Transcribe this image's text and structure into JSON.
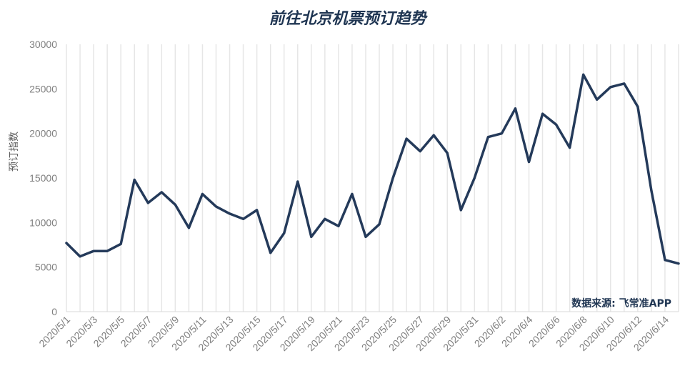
{
  "chart_data": {
    "type": "line",
    "title": "前往北京机票预订趋势",
    "ylabel": "预订指数",
    "source": "数据来源: 飞常准APP",
    "ylim": [
      0,
      30000
    ],
    "yticks": [
      0,
      5000,
      10000,
      15000,
      20000,
      25000,
      30000
    ],
    "grid": "vertical",
    "line_color": "#243a5a",
    "x_tick_labels": [
      "2020/5/1",
      "2020/5/3",
      "2020/5/5",
      "2020/5/7",
      "2020/5/9",
      "2020/5/11",
      "2020/5/13",
      "2020/5/15",
      "2020/5/17",
      "2020/5/19",
      "2020/5/21",
      "2020/5/23",
      "2020/5/25",
      "2020/5/27",
      "2020/5/29",
      "2020/5/31",
      "2020/6/2",
      "2020/6/4",
      "2020/6/6",
      "2020/6/8",
      "2020/6/10",
      "2020/6/12",
      "2020/6/14"
    ],
    "x": [
      "2020/5/1",
      "2020/5/2",
      "2020/5/3",
      "2020/5/4",
      "2020/5/5",
      "2020/5/6",
      "2020/5/7",
      "2020/5/8",
      "2020/5/9",
      "2020/5/10",
      "2020/5/11",
      "2020/5/12",
      "2020/5/13",
      "2020/5/14",
      "2020/5/15",
      "2020/5/16",
      "2020/5/17",
      "2020/5/18",
      "2020/5/19",
      "2020/5/20",
      "2020/5/21",
      "2020/5/22",
      "2020/5/23",
      "2020/5/24",
      "2020/5/25",
      "2020/5/26",
      "2020/5/27",
      "2020/5/28",
      "2020/5/29",
      "2020/5/30",
      "2020/5/31",
      "2020/6/1",
      "2020/6/2",
      "2020/6/3",
      "2020/6/4",
      "2020/6/5",
      "2020/6/6",
      "2020/6/7",
      "2020/6/8",
      "2020/6/9",
      "2020/6/10",
      "2020/6/11",
      "2020/6/12",
      "2020/6/13",
      "2020/6/14",
      "2020/6/15"
    ],
    "values": [
      7700,
      6200,
      6800,
      6800,
      7600,
      14800,
      12200,
      13400,
      12000,
      9400,
      13200,
      11800,
      11000,
      10400,
      11400,
      6600,
      8800,
      14600,
      8400,
      10400,
      9600,
      13200,
      8400,
      9800,
      15000,
      19400,
      18000,
      19800,
      17800,
      11400,
      15000,
      19600,
      20000,
      22800,
      16800,
      22200,
      21000,
      18400,
      26600,
      23800,
      25200,
      25600,
      23000,
      13600,
      5800,
      5400
    ]
  }
}
